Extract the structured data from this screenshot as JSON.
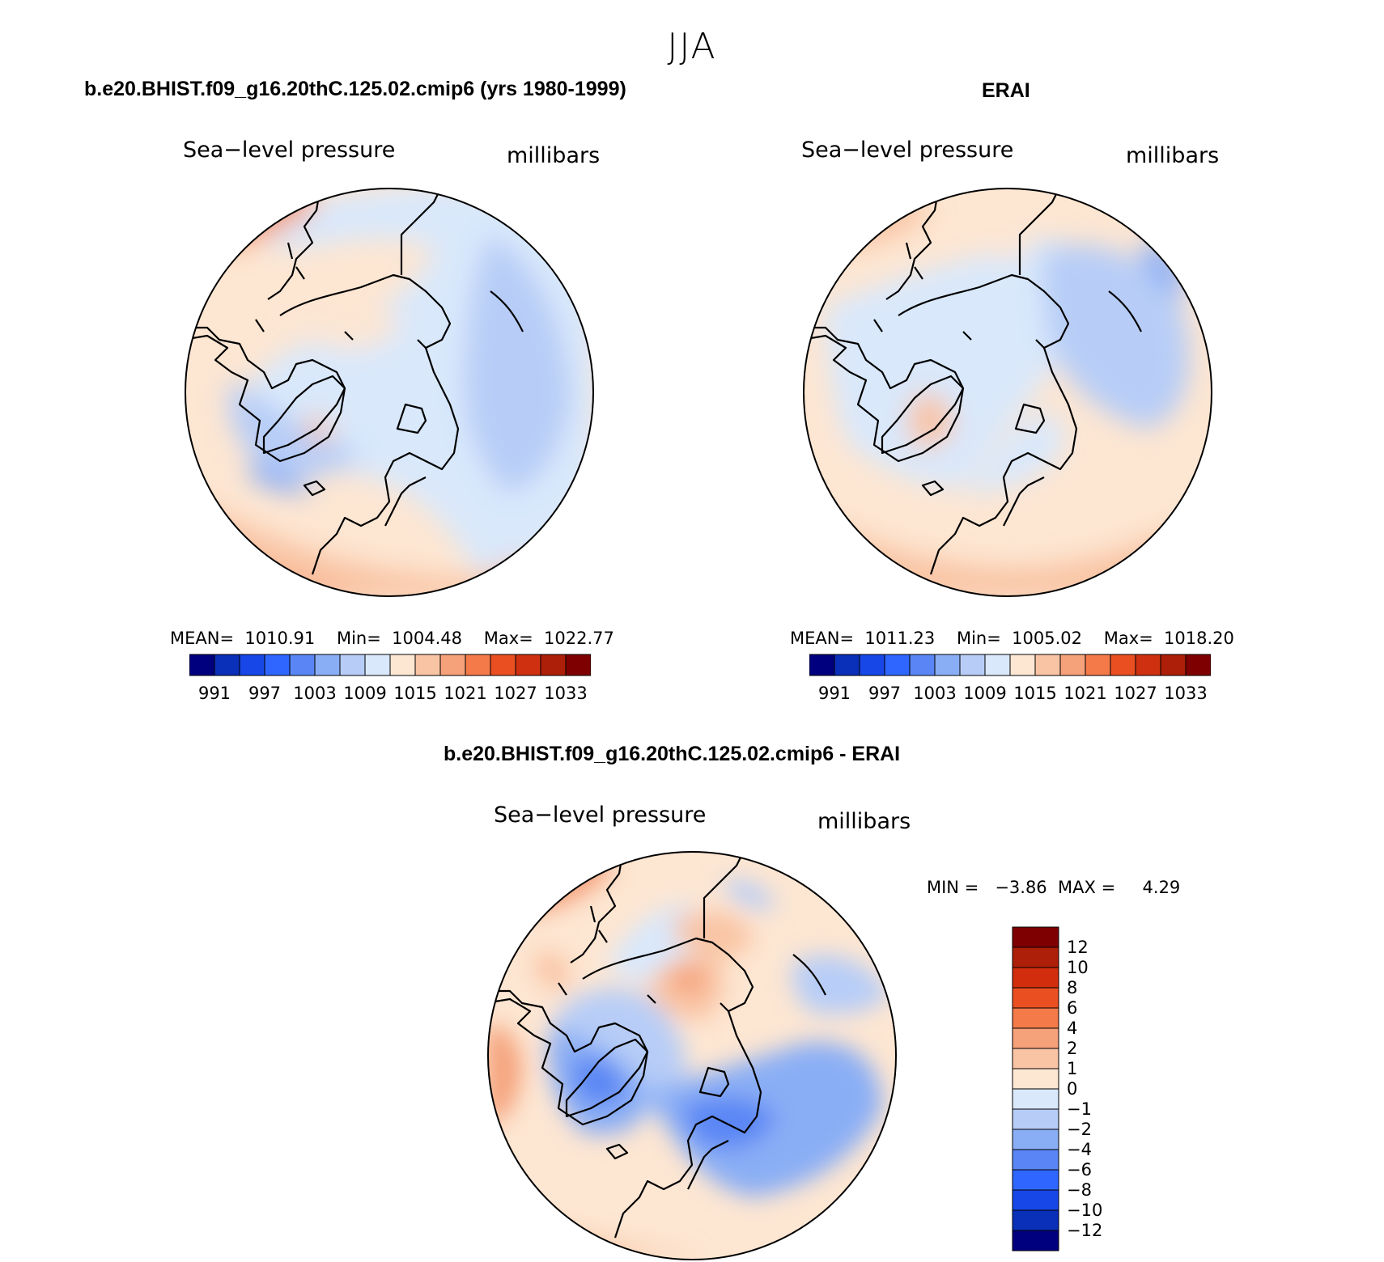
{
  "season": "JJA",
  "panels": [
    {
      "title": "b.e20.BHIST.f09_g16.20thC.125.02.cmip6 (yrs 1980-1999)",
      "variable": "Sea−level pressure",
      "units": "millibars",
      "stats": "MEAN=  1010.91    Min=  1004.48    Max=  1022.77",
      "colorbar_labels": [
        "991",
        "997",
        "1003",
        "1009",
        "1015",
        "1021",
        "1027",
        "1033"
      ]
    },
    {
      "title": "ERAI",
      "variable": "Sea−level pressure",
      "units": "millibars",
      "stats": "MEAN=  1011.23    Min=  1005.02    Max=  1018.20",
      "colorbar_labels": [
        "991",
        "997",
        "1003",
        "1009",
        "1015",
        "1021",
        "1027",
        "1033"
      ]
    },
    {
      "title": "b.e20.BHIST.f09_g16.20thC.125.02.cmip6 - ERAI",
      "variable": "Sea−level pressure",
      "units": "millibars",
      "stats": "MIN =   −3.86  MAX =     4.29",
      "colorbar_labels": [
        "12",
        "10",
        "8",
        "6",
        "4",
        "2",
        "1",
        "0",
        "−1",
        "−2",
        "−4",
        "−6",
        "−8",
        "−10",
        "−12"
      ]
    }
  ],
  "colors": {
    "abs_scale": [
      "#00007f",
      "#0a2fb8",
      "#1747e6",
      "#2f66ff",
      "#5a86f5",
      "#8aaef5",
      "#b7cdf7",
      "#d9e8fb",
      "#fde6d2",
      "#f9c4a4",
      "#f5a17a",
      "#f47a4a",
      "#ea4f22",
      "#cf3010",
      "#ad1f08",
      "#7f0000"
    ],
    "diff_scale_top_down": [
      "#7f0000",
      "#ad1f08",
      "#d22d0d",
      "#ea4f22",
      "#f47a4a",
      "#f5a17a",
      "#f9c4a4",
      "#fde6d2",
      "#d9e8fb",
      "#b7cdf7",
      "#8aaef5",
      "#5a86f5",
      "#2f66ff",
      "#1747e6",
      "#0a2fb8",
      "#00007f"
    ]
  }
}
